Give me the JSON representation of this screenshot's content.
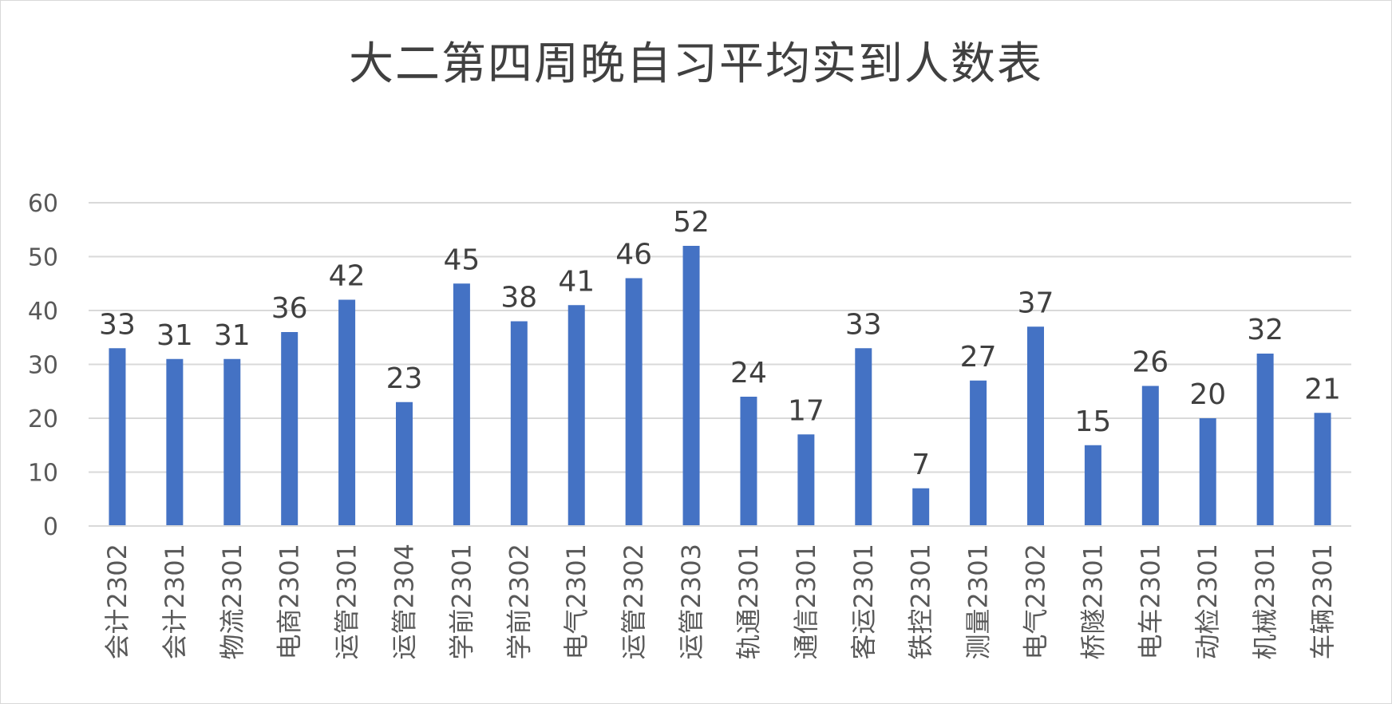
{
  "chart_data": {
    "type": "bar",
    "title": "大二第四周晚自习平均实到人数表",
    "categories": [
      "会计2302",
      "会计2301",
      "物流2301",
      "电商2301",
      "运管2301",
      "运管2304",
      "学前2301",
      "学前2302",
      "电气2301",
      "运管2302",
      "运管2303",
      "轨通2301",
      "通信2301",
      "客运2301",
      "铁控2301",
      "测量2301",
      "电气2302",
      "桥隧2301",
      "电车2301",
      "动检2301",
      "机械2301",
      "车辆2301"
    ],
    "values": [
      33,
      31,
      31,
      36,
      42,
      23,
      45,
      38,
      41,
      46,
      52,
      24,
      17,
      33,
      7,
      27,
      37,
      15,
      26,
      20,
      32,
      21
    ],
    "yticks": [
      "0",
      "10",
      "20",
      "30",
      "40",
      "50",
      "60"
    ],
    "ylim": [
      0,
      60
    ],
    "xlabel": "",
    "ylabel": "",
    "grid": true,
    "legend": "none",
    "data_labels": true,
    "colors": {
      "bar": "#4472C4",
      "grid": "#d9d9d9",
      "axis": "#d9d9d9"
    }
  }
}
